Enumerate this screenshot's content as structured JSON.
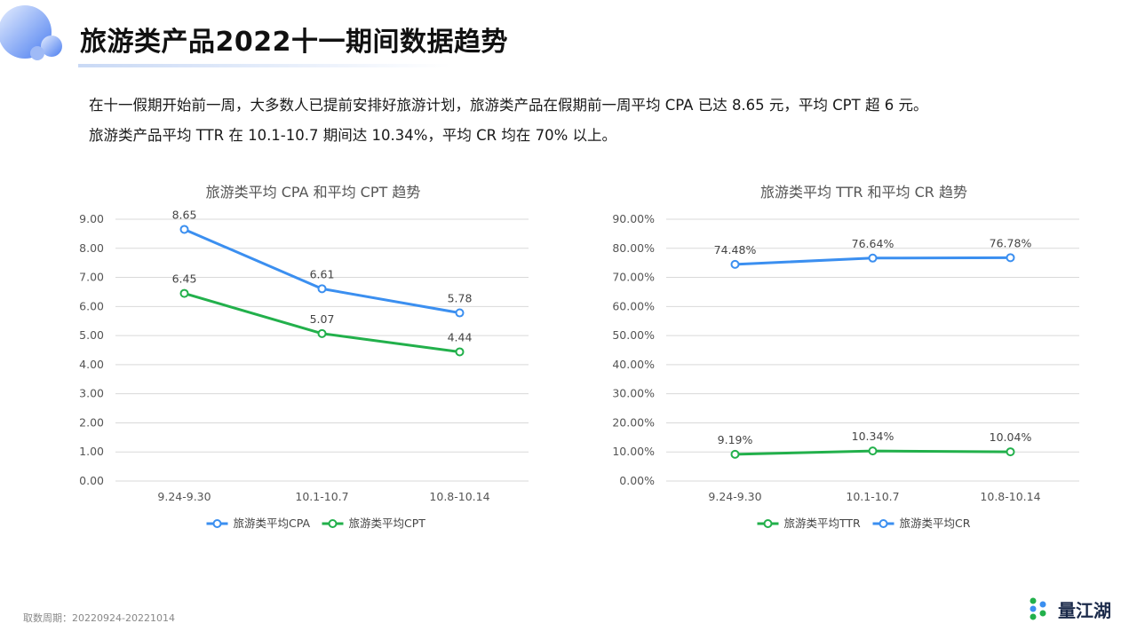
{
  "header": {
    "title": "旅游类产品2022十一期间数据趋势",
    "summary_line1": "在十一假期开始前一周，大多数人已提前安排好旅游计划，旅游类产品在假期前一周平均 CPA 已达 8.65 元，平均 CPT 超 6 元。",
    "summary_line2": "旅游类产品平均 TTR 在 10.1-10.7 期间达 10.34%，平均 CR 均在 70% 以上。"
  },
  "footer": {
    "period": "取数周期：20220924-20221014",
    "brand": "量江湖"
  },
  "colors": {
    "blue": "#3b8ff0",
    "green": "#22b04b",
    "grid": "#d9d9d9",
    "axis_text": "#555555",
    "title_text": "#555555"
  },
  "chart_data": [
    {
      "type": "line",
      "title": "旅游类平均 CPA 和平均 CPT 趋势",
      "categories": [
        "9.24-9.30",
        "10.1-10.7",
        "10.8-10.14"
      ],
      "ylim": [
        0,
        9
      ],
      "yticks": [
        "0.00",
        "1.00",
        "2.00",
        "3.00",
        "4.00",
        "5.00",
        "6.00",
        "7.00",
        "8.00",
        "9.00"
      ],
      "grid": true,
      "legend_position": "bottom",
      "series": [
        {
          "name": "旅游类平均CPA",
          "color": "blue",
          "values": [
            8.65,
            6.61,
            5.78
          ],
          "labels": [
            "8.65",
            "6.61",
            "5.78"
          ]
        },
        {
          "name": "旅游类平均CPT",
          "color": "green",
          "values": [
            6.45,
            5.07,
            4.44
          ],
          "labels": [
            "6.45",
            "5.07",
            "4.44"
          ]
        }
      ]
    },
    {
      "type": "line",
      "title": "旅游类平均 TTR 和平均 CR 趋势",
      "categories": [
        "9.24-9.30",
        "10.1-10.7",
        "10.8-10.14"
      ],
      "ylim": [
        0,
        90
      ],
      "yticks": [
        "0.00%",
        "10.00%",
        "20.00%",
        "30.00%",
        "40.00%",
        "50.00%",
        "60.00%",
        "70.00%",
        "80.00%",
        "90.00%"
      ],
      "grid": true,
      "legend_position": "bottom",
      "series": [
        {
          "name": "旅游类平均TTR",
          "color": "green",
          "values": [
            9.19,
            10.34,
            10.04
          ],
          "labels": [
            "9.19%",
            "10.34%",
            "10.04%"
          ]
        },
        {
          "name": "旅游类平均CR",
          "color": "blue",
          "values": [
            74.48,
            76.64,
            76.78
          ],
          "labels": [
            "74.48%",
            "76.64%",
            "76.78%"
          ]
        }
      ]
    }
  ]
}
